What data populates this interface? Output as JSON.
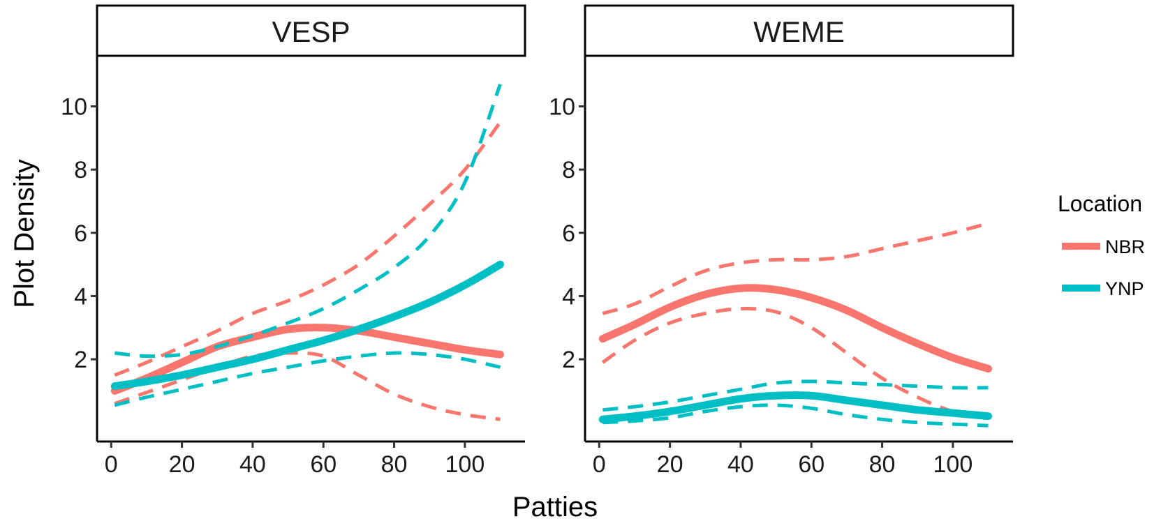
{
  "chart_data": {
    "type": "line",
    "xlabel": "Patties",
    "ylabel": "Plot Density",
    "xlim": [
      -4,
      117
    ],
    "ylim": [
      -0.6,
      11.6
    ],
    "x_ticks": [
      0,
      20,
      40,
      60,
      80,
      100
    ],
    "y_ticks": [
      2,
      4,
      6,
      8,
      10
    ],
    "grid": false,
    "legend": {
      "title": "Location",
      "position": "right",
      "entries": [
        {
          "label": "NBR",
          "color": "#F8766D"
        },
        {
          "label": "YNP",
          "color": "#00BFC4"
        }
      ]
    },
    "panels": [
      {
        "title": "VESP",
        "series": [
          {
            "name": "NBR",
            "color": "#F8766D",
            "x": [
              1,
              10,
              20,
              30,
              40,
              50,
              60,
              70,
              80,
              90,
              100,
              110
            ],
            "fit": [
              1.0,
              1.4,
              1.9,
              2.4,
              2.7,
              2.95,
              3.0,
              2.9,
              2.7,
              2.5,
              2.3,
              2.15
            ],
            "lower": [
              0.6,
              0.95,
              1.35,
              1.75,
              2.1,
              2.2,
              2.1,
              1.5,
              0.9,
              0.5,
              0.25,
              0.1
            ],
            "upper": [
              1.5,
              1.9,
              2.4,
              2.9,
              3.45,
              3.85,
              4.35,
              5.0,
              5.9,
              6.9,
              8.0,
              9.5
            ]
          },
          {
            "name": "YNP",
            "color": "#00BFC4",
            "x": [
              1,
              10,
              20,
              30,
              40,
              50,
              60,
              70,
              80,
              90,
              100,
              110
            ],
            "fit": [
              1.15,
              1.3,
              1.5,
              1.75,
              2.0,
              2.3,
              2.6,
              2.95,
              3.35,
              3.8,
              4.35,
              5.0
            ],
            "lower": [
              0.55,
              0.8,
              1.05,
              1.3,
              1.55,
              1.75,
              1.95,
              2.1,
              2.2,
              2.15,
              2.0,
              1.75
            ],
            "upper": [
              2.2,
              2.1,
              2.15,
              2.4,
              2.75,
              3.15,
              3.6,
              4.2,
              4.9,
              5.9,
              7.6,
              10.7
            ]
          }
        ]
      },
      {
        "title": "WEME",
        "series": [
          {
            "name": "NBR",
            "color": "#F8766D",
            "x": [
              1,
              10,
              20,
              30,
              40,
              50,
              60,
              70,
              80,
              90,
              100,
              110
            ],
            "fit": [
              2.65,
              3.1,
              3.65,
              4.05,
              4.25,
              4.2,
              3.95,
              3.55,
              3.0,
              2.5,
              2.05,
              1.7
            ],
            "lower": [
              1.9,
              2.6,
              3.15,
              3.45,
              3.6,
              3.5,
              3.0,
              2.2,
              1.4,
              0.8,
              0.35,
              0.15
            ],
            "upper": [
              3.45,
              3.75,
              4.3,
              4.8,
              5.05,
              5.15,
              5.15,
              5.25,
              5.5,
              5.75,
              6.0,
              6.3
            ]
          },
          {
            "name": "YNP",
            "color": "#00BFC4",
            "x": [
              1,
              10,
              20,
              30,
              40,
              50,
              60,
              70,
              80,
              90,
              100,
              110
            ],
            "fit": [
              0.1,
              0.2,
              0.35,
              0.55,
              0.75,
              0.85,
              0.85,
              0.7,
              0.55,
              0.4,
              0.3,
              0.2
            ],
            "lower": [
              0.0,
              0.05,
              0.15,
              0.35,
              0.5,
              0.55,
              0.45,
              0.25,
              0.1,
              0.0,
              -0.05,
              -0.1
            ],
            "upper": [
              0.4,
              0.5,
              0.65,
              0.85,
              1.05,
              1.25,
              1.3,
              1.25,
              1.2,
              1.15,
              1.1,
              1.1
            ]
          }
        ]
      }
    ]
  }
}
